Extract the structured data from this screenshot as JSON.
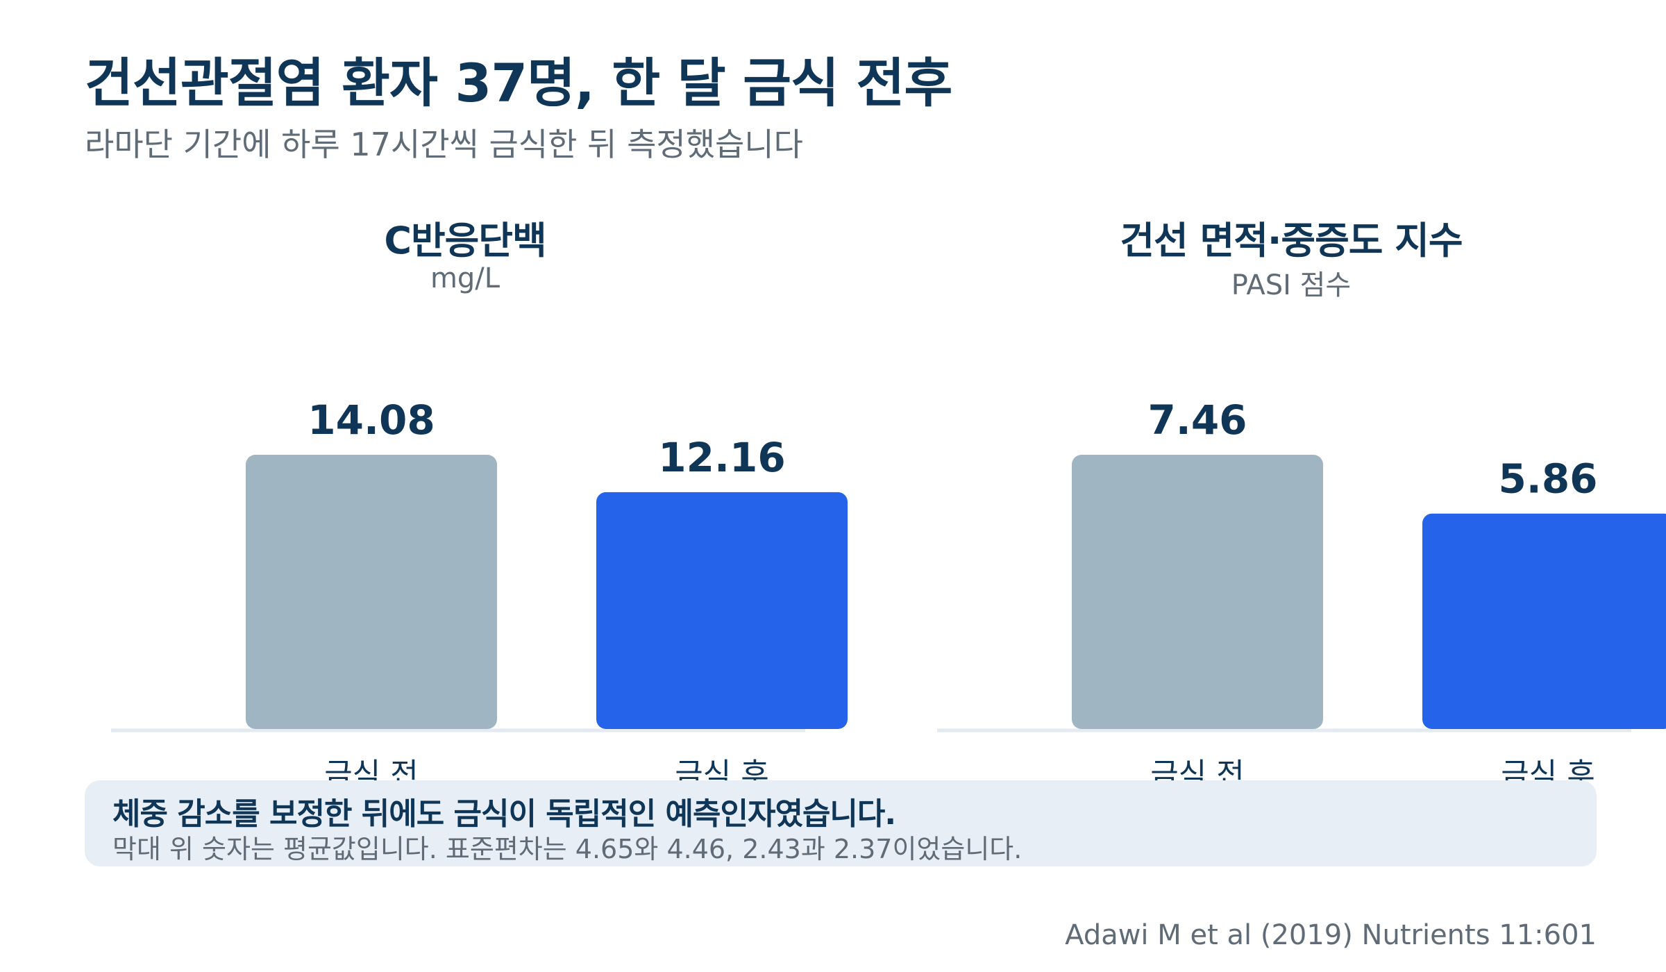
{
  "title": "건선관절염 환자 37명, 한 달 금식 전후",
  "subtitle": "라마단 기간에 하루 17시간씩 금식한 뒤 측정했습니다",
  "colors": {
    "before": "#a0b5c2",
    "after": "#2563eb",
    "text_dark": "#0f3557",
    "text_muted": "#5f6b77",
    "baseline": "#e3eaf1"
  },
  "chart_data": [
    {
      "type": "bar",
      "title": "C반응단백",
      "ylabel": "mg/L",
      "categories": [
        "금식 전",
        "금식 후"
      ],
      "values": [
        14.08,
        12.16
      ],
      "ylim": [
        0,
        14.08
      ],
      "grid": false
    },
    {
      "type": "bar",
      "title": "건선 면적·중증도 지수",
      "ylabel": "PASI 점수",
      "categories": [
        "금식 전",
        "금식 후"
      ],
      "values": [
        7.46,
        5.86
      ],
      "ylim": [
        0,
        7.46
      ],
      "grid": false
    }
  ],
  "note": {
    "main": "체중 감소를 보정한 뒤에도 금식이 독립적인 예측인자였습니다.",
    "sub": "막대 위 숫자는 평균값입니다. 표준편차는 4.65와 4.46, 2.43과 2.37이었습니다."
  },
  "source": "Adawi M et al (2019) Nutrients 11:601"
}
